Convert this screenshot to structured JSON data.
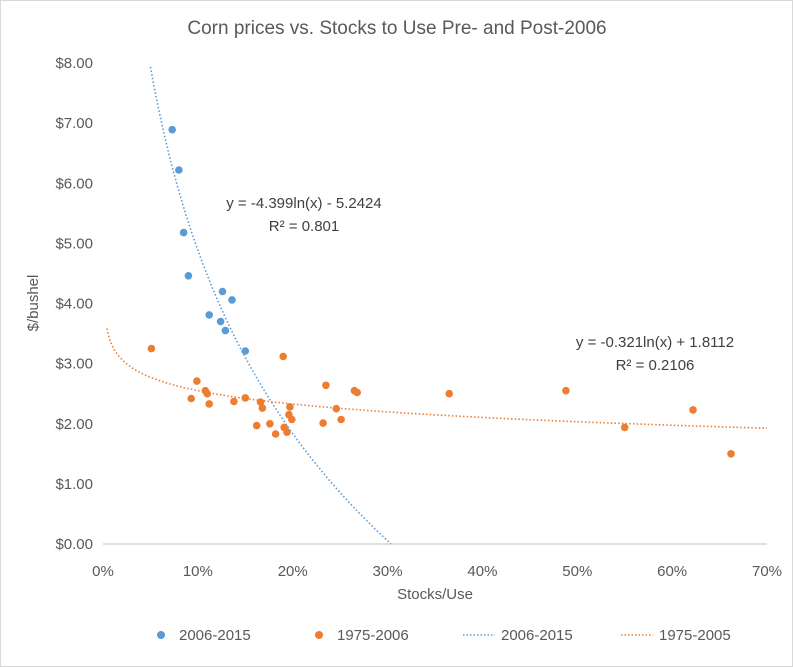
{
  "chart_data": {
    "type": "scatter",
    "title": "Corn prices vs. Stocks to Use Pre- and Post-2006",
    "xlabel": "Stocks/Use",
    "ylabel": "$/bushel",
    "xlim": [
      0,
      0.7
    ],
    "ylim": [
      0,
      8
    ],
    "x_ticks": [
      {
        "value": 0.0,
        "label": "0%"
      },
      {
        "value": 0.1,
        "label": "10%"
      },
      {
        "value": 0.2,
        "label": "20%"
      },
      {
        "value": 0.3,
        "label": "30%"
      },
      {
        "value": 0.4,
        "label": "40%"
      },
      {
        "value": 0.5,
        "label": "50%"
      },
      {
        "value": 0.6,
        "label": "60%"
      },
      {
        "value": 0.7,
        "label": "70%"
      }
    ],
    "y_ticks": [
      {
        "value": 0,
        "label": "$0.00"
      },
      {
        "value": 1,
        "label": "$1.00"
      },
      {
        "value": 2,
        "label": "$2.00"
      },
      {
        "value": 3,
        "label": "$3.00"
      },
      {
        "value": 4,
        "label": "$4.00"
      },
      {
        "value": 5,
        "label": "$5.00"
      },
      {
        "value": 6,
        "label": "$6.00"
      },
      {
        "value": 7,
        "label": "$7.00"
      },
      {
        "value": 8,
        "label": "$8.00"
      }
    ],
    "grid": false,
    "legend_position": "bottom",
    "series": [
      {
        "name": "2006-2015",
        "kind": "points",
        "color": "#5b9bd5",
        "points": [
          [
            0.073,
            6.89
          ],
          [
            0.08,
            6.22
          ],
          [
            0.085,
            5.18
          ],
          [
            0.09,
            4.46
          ],
          [
            0.112,
            3.81
          ],
          [
            0.124,
            3.7
          ],
          [
            0.126,
            4.2
          ],
          [
            0.129,
            3.55
          ],
          [
            0.136,
            4.06
          ],
          [
            0.15,
            3.21
          ]
        ]
      },
      {
        "name": "1975-2006",
        "kind": "points",
        "color": "#ed7d31",
        "points": [
          [
            0.051,
            3.25
          ],
          [
            0.093,
            2.42
          ],
          [
            0.099,
            2.71
          ],
          [
            0.108,
            2.55
          ],
          [
            0.11,
            2.5
          ],
          [
            0.112,
            2.33
          ],
          [
            0.138,
            2.37
          ],
          [
            0.15,
            2.43
          ],
          [
            0.162,
            1.97
          ],
          [
            0.166,
            2.36
          ],
          [
            0.168,
            2.26
          ],
          [
            0.176,
            2.0
          ],
          [
            0.182,
            1.83
          ],
          [
            0.19,
            3.12
          ],
          [
            0.191,
            1.94
          ],
          [
            0.194,
            1.86
          ],
          [
            0.196,
            2.15
          ],
          [
            0.197,
            2.28
          ],
          [
            0.199,
            2.07
          ],
          [
            0.232,
            2.01
          ],
          [
            0.235,
            2.64
          ],
          [
            0.246,
            2.25
          ],
          [
            0.251,
            2.07
          ],
          [
            0.265,
            2.55
          ],
          [
            0.268,
            2.52
          ],
          [
            0.365,
            2.5
          ],
          [
            0.488,
            2.55
          ],
          [
            0.55,
            1.94
          ],
          [
            0.622,
            2.23
          ],
          [
            0.662,
            1.5
          ]
        ]
      },
      {
        "name": "2006-2015",
        "kind": "trendline",
        "color": "#5b9bd5",
        "model": "log",
        "a": -4.399,
        "b": -5.2424,
        "x_range": [
          0.05,
          0.31
        ]
      },
      {
        "name": "1975-2005",
        "kind": "trendline",
        "color": "#ed7d31",
        "model": "log",
        "a": -0.321,
        "b": 1.8112,
        "x_range": [
          0.0,
          0.7
        ]
      }
    ],
    "annotations": [
      {
        "lines": [
          "y = -4.399ln(x) - 5.2424",
          "R² = 0.801"
        ]
      },
      {
        "lines": [
          "y = -0.321ln(x) + 1.8112",
          "R² = 0.2106"
        ]
      }
    ]
  }
}
